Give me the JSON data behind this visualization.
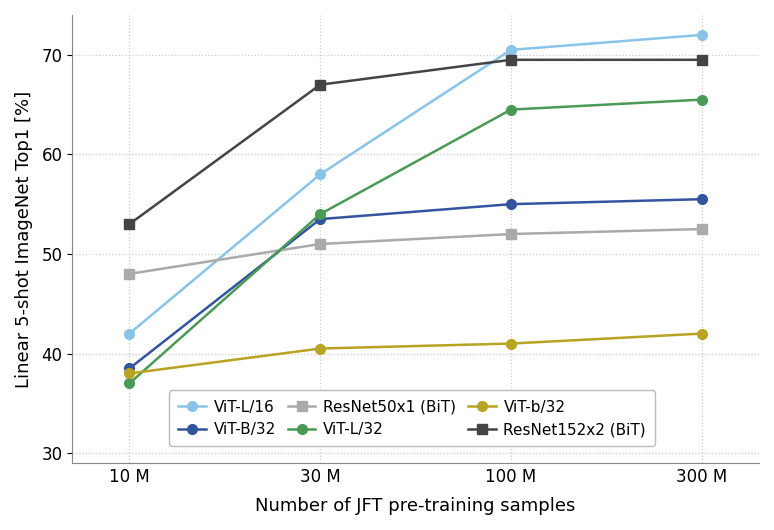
{
  "x_positions": [
    0,
    1,
    2,
    3
  ],
  "x_labels": [
    "10 M",
    "30 M",
    "100 M",
    "300 M"
  ],
  "series": [
    {
      "label": "ViT-L/16",
      "color": "#89C4E8",
      "marker": "o",
      "values": [
        42,
        58,
        70.5,
        72
      ]
    },
    {
      "label": "ViT-B/32",
      "color": "#3355A0",
      "marker": "o",
      "values": [
        38.5,
        53.5,
        55,
        55.5
      ]
    },
    {
      "label": "ResNet50x1 (BiT)",
      "color": "#AAAAAA",
      "marker": "s",
      "values": [
        48,
        51,
        52,
        52.5
      ]
    },
    {
      "label": "ViT-L/32",
      "color": "#4A9A56",
      "marker": "o",
      "values": [
        37,
        54,
        64.5,
        65.5
      ]
    },
    {
      "label": "ViT-b/32",
      "color": "#B8A322",
      "marker": "o",
      "values": [
        38,
        40.5,
        41,
        42
      ]
    },
    {
      "label": "ResNet152x2 (BiT)",
      "color": "#444444",
      "marker": "s",
      "values": [
        53,
        67,
        69.5,
        69.5
      ]
    }
  ],
  "legend_order": [
    0,
    1,
    2,
    3,
    4,
    5
  ],
  "xlabel": "Number of JFT pre-training samples",
  "ylabel": "Linear 5-shot ImageNet Top1 [%]",
  "ylim": [
    29,
    74
  ],
  "yticks": [
    30,
    40,
    50,
    60,
    70
  ],
  "legend_ncol": 3,
  "grid_color": "#cccccc",
  "linewidth": 1.8,
  "markersize": 7,
  "figure_facecolor": "#ffffff",
  "axes_facecolor": "#ffffff"
}
